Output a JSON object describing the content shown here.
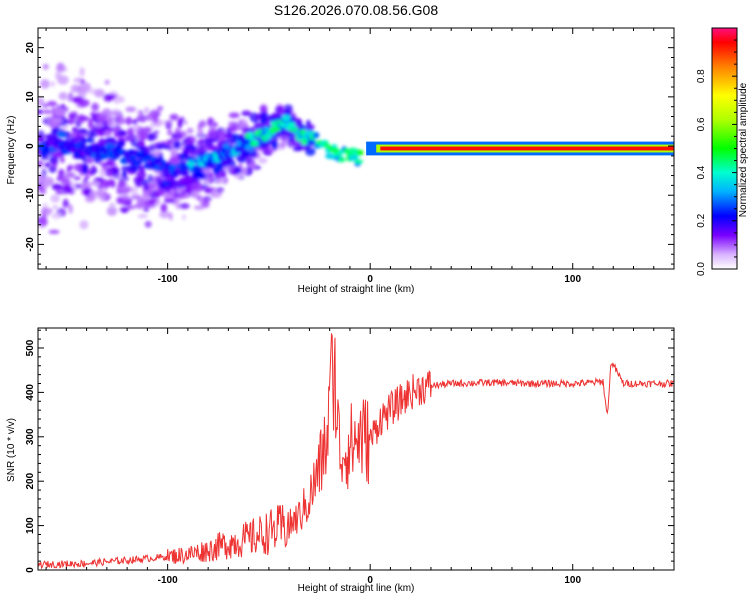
{
  "title": "S126.2026.070.08.56.G08",
  "colors": {
    "snr_line": "#ee3333",
    "frame": "#000000"
  },
  "chart_data": [
    {
      "type": "heatmap",
      "title": "S126.2026.070.08.56.G08",
      "xlabel": "Height of straight line (km)",
      "ylabel": "Frequency (Hz)",
      "xlim": [
        -164,
        150
      ],
      "ylim": [
        -25,
        24
      ],
      "x_ticks": [
        -100,
        0,
        100
      ],
      "y_ticks": [
        20,
        10,
        0,
        -10,
        -20
      ],
      "x_tick_labels": [
        "-100",
        "0",
        "100"
      ],
      "y_tick_labels": [
        "20",
        "10",
        "0",
        "-10",
        "-20"
      ],
      "ridge": [
        {
          "x": -160,
          "y": 0
        },
        {
          "x": -130,
          "y": -1
        },
        {
          "x": -110,
          "y": -3
        },
        {
          "x": -95,
          "y": -5
        },
        {
          "x": -85,
          "y": -4
        },
        {
          "x": -75,
          "y": -2
        },
        {
          "x": -65,
          "y": 0
        },
        {
          "x": -55,
          "y": 2
        },
        {
          "x": -48,
          "y": 3.5
        },
        {
          "x": -40,
          "y": 5
        },
        {
          "x": -35,
          "y": 2
        },
        {
          "x": -28,
          "y": 1.5
        },
        {
          "x": -20,
          "y": -1
        },
        {
          "x": -10,
          "y": -2
        },
        {
          "x": -5,
          "y": -2.5
        },
        {
          "x": 5,
          "y": -1
        },
        {
          "x": 20,
          "y": -0.5
        },
        {
          "x": 150,
          "y": -0.5
        }
      ],
      "colorbar": {
        "label": "Normalized spectral amplitude",
        "range": [
          0,
          1
        ],
        "ticks": [
          0.0,
          0.2,
          0.4,
          0.6,
          0.8
        ],
        "tick_labels": [
          "0.0",
          "0.2",
          "0.4",
          "0.6",
          "0.8"
        ]
      }
    },
    {
      "type": "line",
      "xlabel": "Height of straight line (km)",
      "ylabel": "SNR (10 * v/v)",
      "xlim": [
        -164,
        150
      ],
      "ylim": [
        0,
        545
      ],
      "x_ticks": [
        -100,
        0,
        100
      ],
      "y_ticks": [
        0,
        100,
        200,
        300,
        400,
        500
      ],
      "x_tick_labels": [
        "-100",
        "0",
        "100"
      ],
      "y_tick_labels": [
        "0",
        "100",
        "200",
        "300",
        "400",
        "500"
      ],
      "series": [
        {
          "name": "SNR",
          "x": [
            -164,
            -140,
            -120,
            -100,
            -90,
            -80,
            -70,
            -60,
            -50,
            -40,
            -35,
            -30,
            -25,
            -21,
            -19,
            -15,
            -10,
            -5,
            0,
            5,
            10,
            15,
            20,
            25,
            30,
            40,
            60,
            80,
            100,
            110,
            115,
            117,
            119,
            125,
            150
          ],
          "y": [
            12,
            15,
            22,
            30,
            35,
            45,
            60,
            70,
            85,
            100,
            120,
            160,
            230,
            300,
            545,
            260,
            280,
            300,
            290,
            340,
            360,
            380,
            400,
            410,
            415,
            420,
            422,
            420,
            420,
            422,
            425,
            345,
            470,
            420,
            420
          ]
        }
      ]
    }
  ]
}
